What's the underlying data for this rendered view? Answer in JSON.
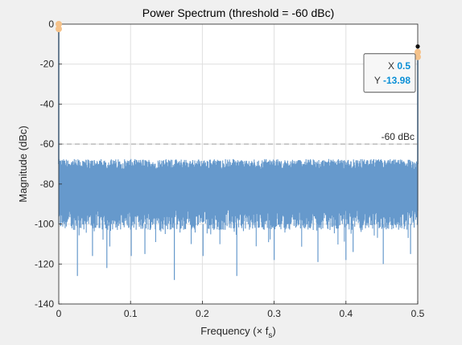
{
  "chart_data": {
    "type": "line",
    "title": "Power Spectrum (threshold = -60 dBc)",
    "xlabel": "Frequency (× f",
    "xlabel_sub": "s",
    "xlabel_close": ")",
    "ylabel": "Magnitude (dBc)",
    "xlim": [
      0,
      0.5
    ],
    "ylim": [
      -140,
      0
    ],
    "xticks": [
      0,
      0.1,
      0.2,
      0.3,
      0.4,
      0.5
    ],
    "xtick_labels": [
      "0",
      "0.1",
      "0.2",
      "0.3",
      "0.4",
      "0.5"
    ],
    "yticks": [
      0,
      -20,
      -40,
      -60,
      -80,
      -100,
      -120,
      -140
    ],
    "ytick_labels": [
      "0",
      "-20",
      "-40",
      "-60",
      "-80",
      "-100",
      "-120",
      "-140"
    ],
    "grid": true,
    "noise_floor": {
      "upper": -70,
      "lower_typical": -100,
      "deep_dips_to": -128
    },
    "series": [
      {
        "color": "#6699cc",
        "peaks": [
          {
            "x": 0,
            "y": 0
          },
          {
            "x": 0.5,
            "y": -13.98
          }
        ],
        "deep_dips": [
          {
            "x": 0.026,
            "y": -126
          },
          {
            "x": 0.047,
            "y": -116
          },
          {
            "x": 0.067,
            "y": -122
          },
          {
            "x": 0.101,
            "y": -116
          },
          {
            "x": 0.12,
            "y": -115
          },
          {
            "x": 0.161,
            "y": -128
          },
          {
            "x": 0.201,
            "y": -116
          },
          {
            "x": 0.248,
            "y": -126
          },
          {
            "x": 0.3,
            "y": -118
          },
          {
            "x": 0.361,
            "y": -119
          },
          {
            "x": 0.4,
            "y": -118
          },
          {
            "x": 0.41,
            "y": -114
          },
          {
            "x": 0.452,
            "y": -120
          },
          {
            "x": 0.49,
            "y": -115
          }
        ]
      }
    ],
    "threshold": {
      "y": -60,
      "label": "-60 dBc",
      "color": "#a0a0a0"
    },
    "markers": [
      {
        "x": 0,
        "y": 0,
        "color": "#f5c28a"
      },
      {
        "x": 0.5,
        "y": -13.98,
        "color": "#f5c28a"
      }
    ],
    "datatip": {
      "x_label": "X",
      "x_value": "0.5",
      "y_label": "Y",
      "y_value": "-13.98"
    }
  }
}
